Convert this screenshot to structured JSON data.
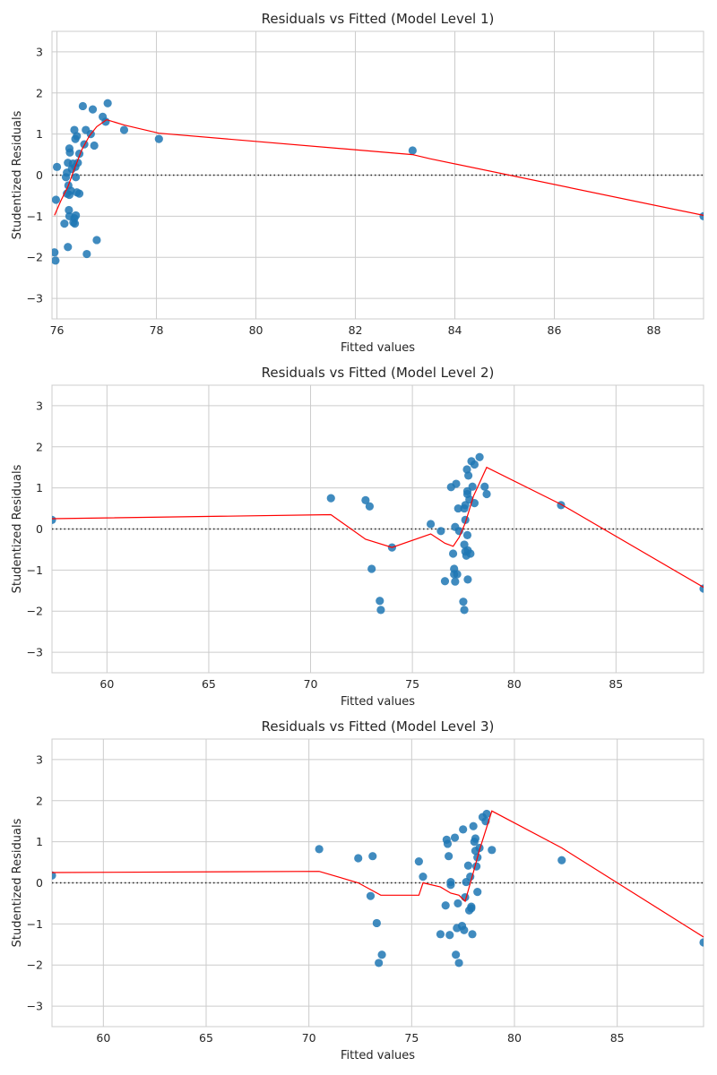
{
  "chart_data": [
    {
      "type": "scatter",
      "title": "Residuals vs Fitted (Model Level 1)",
      "xlabel": "Fitted values",
      "ylabel": "Studentized Residuals",
      "xlim": [
        75.9,
        89.0
      ],
      "ylim": [
        -3.5,
        3.5
      ],
      "xticks": [
        76,
        78,
        80,
        82,
        84,
        86,
        88
      ],
      "yticks": [
        -3,
        -2,
        -1,
        0,
        1,
        2,
        3
      ],
      "grid": true,
      "reference_line_y": 0,
      "points": [
        [
          75.95,
          -1.88
        ],
        [
          75.97,
          -2.08
        ],
        [
          75.98,
          -0.6
        ],
        [
          76.0,
          0.2
        ],
        [
          76.15,
          -1.18
        ],
        [
          76.18,
          -0.05
        ],
        [
          76.2,
          0.06
        ],
        [
          76.2,
          -0.45
        ],
        [
          76.22,
          0.3
        ],
        [
          76.22,
          -1.75
        ],
        [
          76.23,
          -0.25
        ],
        [
          76.24,
          -0.85
        ],
        [
          76.25,
          0.65
        ],
        [
          76.25,
          -0.48
        ],
        [
          76.25,
          -1.0
        ],
        [
          76.26,
          0.55
        ],
        [
          76.28,
          -0.38
        ],
        [
          76.3,
          0.15
        ],
        [
          76.32,
          0.28
        ],
        [
          76.33,
          -1.15
        ],
        [
          76.35,
          1.1
        ],
        [
          76.35,
          -1.05
        ],
        [
          76.36,
          -1.18
        ],
        [
          76.37,
          0.2
        ],
        [
          76.37,
          0.88
        ],
        [
          76.38,
          -0.98
        ],
        [
          76.38,
          -0.05
        ],
        [
          76.4,
          0.95
        ],
        [
          76.4,
          -0.42
        ],
        [
          76.42,
          0.3
        ],
        [
          76.45,
          0.52
        ],
        [
          76.45,
          -0.45
        ],
        [
          76.52,
          1.68
        ],
        [
          76.55,
          0.75
        ],
        [
          76.58,
          1.1
        ],
        [
          76.6,
          -1.92
        ],
        [
          76.68,
          1.0
        ],
        [
          76.72,
          1.6
        ],
        [
          76.75,
          0.72
        ],
        [
          76.8,
          -1.58
        ],
        [
          76.92,
          1.42
        ],
        [
          76.98,
          1.3
        ],
        [
          77.02,
          1.75
        ],
        [
          77.35,
          1.1
        ],
        [
          78.05,
          0.88
        ],
        [
          83.15,
          0.6
        ],
        [
          89.0,
          -1.0
        ]
      ],
      "lowess": [
        [
          75.95,
          -0.98
        ],
        [
          76.08,
          -0.62
        ],
        [
          76.22,
          -0.28
        ],
        [
          76.35,
          0.15
        ],
        [
          76.5,
          0.62
        ],
        [
          76.65,
          0.95
        ],
        [
          76.8,
          1.18
        ],
        [
          77.0,
          1.35
        ],
        [
          77.35,
          1.22
        ],
        [
          78.05,
          1.02
        ],
        [
          83.15,
          0.5
        ],
        [
          83.5,
          0.4
        ],
        [
          89.0,
          -0.98
        ]
      ]
    },
    {
      "type": "scatter",
      "title": "Residuals vs Fitted (Model Level 2)",
      "xlabel": "Fitted values",
      "ylabel": "Studentized Residuals",
      "xlim": [
        57.3,
        89.3
      ],
      "ylim": [
        -3.5,
        3.5
      ],
      "xticks": [
        60,
        65,
        70,
        75,
        80,
        85
      ],
      "yticks": [
        -3,
        -2,
        -1,
        0,
        1,
        2,
        3
      ],
      "grid": true,
      "reference_line_y": 0,
      "points": [
        [
          57.3,
          0.22
        ],
        [
          71.0,
          0.75
        ],
        [
          72.7,
          0.7
        ],
        [
          72.9,
          0.55
        ],
        [
          73.0,
          -0.97
        ],
        [
          73.4,
          -1.75
        ],
        [
          73.45,
          -1.97
        ],
        [
          74.0,
          -0.45
        ],
        [
          75.9,
          0.12
        ],
        [
          76.4,
          -0.05
        ],
        [
          76.6,
          -1.27
        ],
        [
          76.9,
          1.02
        ],
        [
          77.0,
          -0.6
        ],
        [
          77.05,
          -0.97
        ],
        [
          77.05,
          -1.1
        ],
        [
          77.1,
          -1.28
        ],
        [
          77.1,
          0.05
        ],
        [
          77.15,
          1.1
        ],
        [
          77.2,
          -1.1
        ],
        [
          77.25,
          0.5
        ],
        [
          77.3,
          -0.05
        ],
        [
          77.5,
          -1.77
        ],
        [
          77.55,
          -1.97
        ],
        [
          77.55,
          -0.38
        ],
        [
          77.55,
          0.5
        ],
        [
          77.6,
          0.58
        ],
        [
          77.6,
          -0.55
        ],
        [
          77.6,
          0.22
        ],
        [
          77.65,
          -0.65
        ],
        [
          77.68,
          1.45
        ],
        [
          77.7,
          0.92
        ],
        [
          77.7,
          0.85
        ],
        [
          77.7,
          -0.15
        ],
        [
          77.72,
          -1.23
        ],
        [
          77.72,
          -0.52
        ],
        [
          77.75,
          1.3
        ],
        [
          77.8,
          0.72
        ],
        [
          77.85,
          -0.6
        ],
        [
          77.9,
          1.65
        ],
        [
          77.95,
          1.03
        ],
        [
          78.05,
          1.57
        ],
        [
          78.05,
          0.63
        ],
        [
          78.3,
          1.75
        ],
        [
          78.55,
          1.03
        ],
        [
          78.65,
          0.85
        ],
        [
          82.3,
          0.58
        ],
        [
          89.3,
          -1.45
        ]
      ],
      "lowess": [
        [
          57.3,
          0.25
        ],
        [
          71.0,
          0.35
        ],
        [
          72.7,
          -0.25
        ],
        [
          74.0,
          -0.45
        ],
        [
          75.9,
          -0.12
        ],
        [
          76.6,
          -0.35
        ],
        [
          77.0,
          -0.42
        ],
        [
          77.3,
          -0.2
        ],
        [
          77.6,
          0.15
        ],
        [
          78.0,
          0.8
        ],
        [
          78.65,
          1.5
        ],
        [
          82.3,
          0.6
        ],
        [
          89.3,
          -1.42
        ]
      ]
    },
    {
      "type": "scatter",
      "title": "Residuals vs Fitted (Model Level 3)",
      "xlabel": "Fitted values",
      "ylabel": "Studentized Residuals",
      "xlim": [
        57.5,
        89.2
      ],
      "ylim": [
        -3.5,
        3.5
      ],
      "xticks": [
        60,
        65,
        70,
        75,
        80,
        85
      ],
      "yticks": [
        -3,
        -2,
        -1,
        0,
        1,
        2,
        3
      ],
      "grid": true,
      "reference_line_y": 0,
      "points": [
        [
          57.5,
          0.18
        ],
        [
          70.5,
          0.82
        ],
        [
          72.4,
          0.6
        ],
        [
          73.0,
          -0.32
        ],
        [
          73.1,
          0.65
        ],
        [
          73.3,
          -0.98
        ],
        [
          73.4,
          -1.95
        ],
        [
          73.55,
          -1.75
        ],
        [
          75.35,
          0.52
        ],
        [
          75.55,
          0.15
        ],
        [
          76.4,
          -1.25
        ],
        [
          76.65,
          -0.55
        ],
        [
          76.7,
          1.05
        ],
        [
          76.75,
          0.95
        ],
        [
          76.8,
          0.65
        ],
        [
          76.85,
          -1.27
        ],
        [
          76.9,
          -0.05
        ],
        [
          76.9,
          0.02
        ],
        [
          77.1,
          1.1
        ],
        [
          77.15,
          -1.75
        ],
        [
          77.2,
          -1.1
        ],
        [
          77.25,
          -0.5
        ],
        [
          77.3,
          -1.95
        ],
        [
          77.45,
          -1.05
        ],
        [
          77.5,
          1.3
        ],
        [
          77.55,
          -1.15
        ],
        [
          77.6,
          -0.35
        ],
        [
          77.65,
          0.02
        ],
        [
          77.75,
          0.42
        ],
        [
          77.8,
          -0.67
        ],
        [
          77.85,
          0.15
        ],
        [
          77.9,
          -0.58
        ],
        [
          77.9,
          -0.62
        ],
        [
          77.95,
          -1.25
        ],
        [
          78.0,
          1.38
        ],
        [
          78.05,
          1.0
        ],
        [
          78.1,
          0.78
        ],
        [
          78.1,
          1.08
        ],
        [
          78.15,
          0.4
        ],
        [
          78.2,
          -0.22
        ],
        [
          78.2,
          0.62
        ],
        [
          78.3,
          0.85
        ],
        [
          78.45,
          1.6
        ],
        [
          78.6,
          1.5
        ],
        [
          78.65,
          1.68
        ],
        [
          78.9,
          0.8
        ],
        [
          82.3,
          0.55
        ],
        [
          89.2,
          -1.45
        ]
      ],
      "lowess": [
        [
          57.5,
          0.25
        ],
        [
          70.5,
          0.28
        ],
        [
          72.4,
          0.0
        ],
        [
          73.5,
          -0.3
        ],
        [
          75.35,
          -0.3
        ],
        [
          75.55,
          0.0
        ],
        [
          76.4,
          -0.1
        ],
        [
          76.9,
          -0.25
        ],
        [
          77.3,
          -0.3
        ],
        [
          77.6,
          -0.45
        ],
        [
          78.0,
          0.25
        ],
        [
          78.3,
          0.8
        ],
        [
          78.9,
          1.75
        ],
        [
          82.3,
          0.85
        ],
        [
          89.2,
          -1.32
        ]
      ]
    }
  ]
}
